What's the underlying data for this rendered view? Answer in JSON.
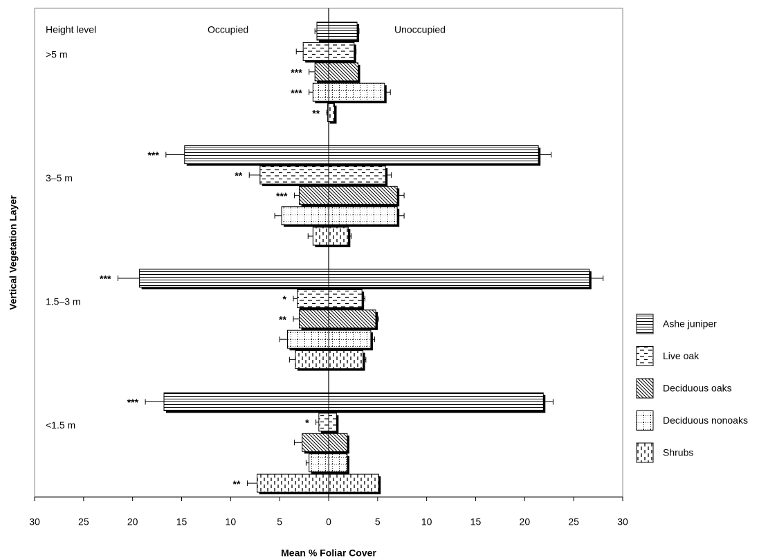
{
  "chart_data": {
    "type": "butterfly-bar",
    "x_label": "Mean % Foliar Cover",
    "y_label": "Vertical Vegetation Layer",
    "level_header": "Height level",
    "left_header": "Occupied",
    "right_header": "Unoccupied",
    "categories": [
      ">5 m",
      "3–5 m",
      "1.5–3 m",
      "<1.5 m"
    ],
    "xlim": [
      -30,
      30
    ],
    "xticks": [
      {
        "value": -30,
        "label": "30"
      },
      {
        "value": -25,
        "label": "25"
      },
      {
        "value": -20,
        "label": "20"
      },
      {
        "value": -15,
        "label": "15"
      },
      {
        "value": -10,
        "label": "10"
      },
      {
        "value": -5,
        "label": "5"
      },
      0,
      5,
      10,
      15,
      20,
      25,
      30
    ],
    "series": [
      {
        "name": "Ashe juniper",
        "pattern": "hlines",
        "occupied": [
          1.2,
          14.7,
          19.3,
          16.8
        ],
        "occupied_err": [
          0.2,
          1.9,
          2.2,
          1.9
        ],
        "unoccupied": [
          2.9,
          21.4,
          26.6,
          21.9
        ],
        "unoccupied_err": [
          0.2,
          1.3,
          1.4,
          1.0
        ],
        "significance": [
          null,
          "***",
          "***",
          "***"
        ]
      },
      {
        "name": "Live oak",
        "pattern": "dashes",
        "occupied": [
          2.6,
          7.0,
          3.2,
          1.0
        ],
        "occupied_err": [
          0.7,
          1.1,
          0.4,
          0.3
        ],
        "unoccupied": [
          2.6,
          5.8,
          3.4,
          0.8
        ],
        "unoccupied_err": [
          0.2,
          0.6,
          0.3,
          0.1
        ],
        "significance": [
          null,
          "**",
          "*",
          "*"
        ]
      },
      {
        "name": "Deciduous oaks",
        "pattern": "diagonal",
        "occupied": [
          1.4,
          3.0,
          3.0,
          2.7
        ],
        "occupied_err": [
          0.6,
          0.5,
          0.6,
          0.8
        ],
        "unoccupied": [
          3.0,
          7.0,
          4.8,
          1.9
        ],
        "unoccupied_err": [
          0.1,
          0.7,
          0.3,
          0.1
        ],
        "significance": [
          "***",
          "***",
          "**",
          null
        ]
      },
      {
        "name": "Deciduous nonoaks",
        "pattern": "dots",
        "occupied": [
          1.6,
          4.8,
          4.2,
          2.0
        ],
        "occupied_err": [
          0.4,
          0.7,
          0.8,
          0.3
        ],
        "unoccupied": [
          5.7,
          7.0,
          4.3,
          1.9
        ],
        "unoccupied_err": [
          0.6,
          0.7,
          0.4,
          0.1
        ],
        "significance": [
          "***",
          null,
          null,
          null
        ]
      },
      {
        "name": "Shrubs",
        "pattern": "vdashes",
        "occupied": [
          0.1,
          1.6,
          3.4,
          7.3
        ],
        "occupied_err": [
          0.1,
          0.5,
          0.6,
          1.0
        ],
        "unoccupied": [
          0.6,
          2.0,
          3.5,
          5.1
        ],
        "unoccupied_err": [
          0.1,
          0.3,
          0.3,
          0.1
        ],
        "significance": [
          "**",
          null,
          null,
          "**"
        ]
      }
    ]
  }
}
